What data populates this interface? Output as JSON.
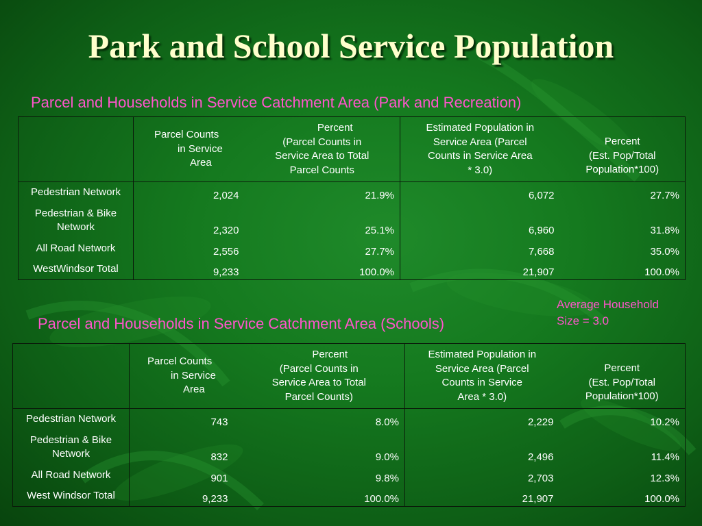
{
  "title": "Park and School Service Population",
  "note": {
    "line1": "Average Household",
    "line2": "Size = 3.0"
  },
  "park": {
    "caption": "Parcel and Households in Service Catchment Area (Park and Recreation)",
    "headers": {
      "col1": {
        "l1": "Parcel Counts",
        "l2": "in Service",
        "l3": "Area"
      },
      "col2": {
        "l1": "Percent",
        "l2": "(Parcel Counts in",
        "l3": "Service Area to Total",
        "l4": "Parcel Counts"
      },
      "col3": {
        "l1": "Estimated Population in",
        "l2": "Service Area (Parcel",
        "l3": "Counts in Service Area",
        "l4": "* 3.0)"
      },
      "col4": {
        "l1": "Percent",
        "l2": "(Est. Pop/Total",
        "l3": "Population*100)"
      }
    },
    "rows": [
      {
        "label1": "Pedestrian Network",
        "label2": "",
        "parcel": "2,024",
        "pct": "21.9%",
        "pop": "6,072",
        "poppct": "27.7%"
      },
      {
        "label1": "Pedestrian & Bike",
        "label2": "Network",
        "parcel": "2,320",
        "pct": "25.1%",
        "pop": "6,960",
        "poppct": "31.8%"
      },
      {
        "label1": "All Road Network",
        "label2": "",
        "parcel": "2,556",
        "pct": "27.7%",
        "pop": "7,668",
        "poppct": "35.0%"
      },
      {
        "label1": "WestWindsor Total",
        "label2": "",
        "parcel": "9,233",
        "pct": "100.0%",
        "pop": "21,907",
        "poppct": "100.0%"
      }
    ]
  },
  "school": {
    "caption": "Parcel and Households in Service Catchment Area (Schools)",
    "headers": {
      "col1": {
        "l1": "Parcel Counts",
        "l2": "in Service",
        "l3": "Area"
      },
      "col2": {
        "l1": "Percent",
        "l2": "(Parcel Counts in",
        "l3": "Service Area to Total",
        "l4": "Parcel Counts)"
      },
      "col3": {
        "l1": "Estimated Population in",
        "l2": "Service Area (Parcel",
        "l3": "Counts in Service",
        "l4": "Area * 3.0)"
      },
      "col4": {
        "l1": "Percent",
        "l2": "(Est. Pop/Total",
        "l3": "Population*100)"
      }
    },
    "rows": [
      {
        "label1": "Pedestrian Network",
        "label2": "",
        "parcel": "743",
        "pct": "8.0%",
        "pop": "2,229",
        "poppct": "10.2%"
      },
      {
        "label1": "Pedestrian & Bike",
        "label2": "Network",
        "parcel": "832",
        "pct": "9.0%",
        "pop": "2,496",
        "poppct": "11.4%"
      },
      {
        "label1": "All Road Network",
        "label2": "",
        "parcel": "901",
        "pct": "9.8%",
        "pop": "2,703",
        "poppct": "12.3%"
      },
      {
        "label1": "West Windsor Total",
        "label2": "",
        "parcel": "9,233",
        "pct": "100.0%",
        "pop": "21,907",
        "poppct": "100.0%"
      }
    ]
  }
}
